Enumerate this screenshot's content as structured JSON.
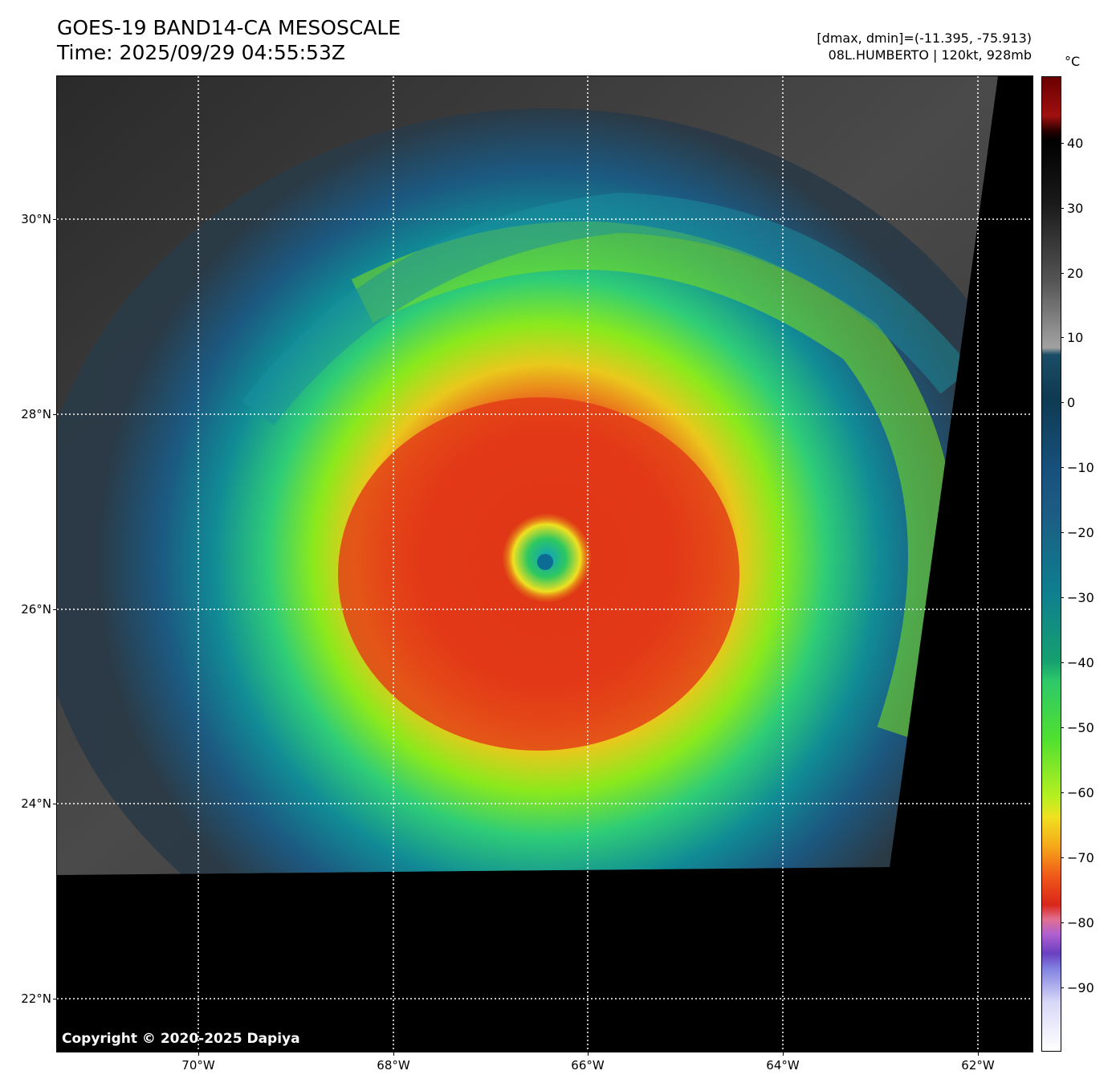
{
  "header": {
    "title": "GOES-19 BAND14-CA MESOSCALE",
    "time": "Time: 2025/09/29 04:55:53Z",
    "dminmax": "[dmax, dmin]=(-11.395, -75.913)",
    "storm": "08L.HUMBERTO | 120kt, 928mb"
  },
  "map": {
    "lat_labels": [
      "30°N",
      "28°N",
      "26°N",
      "24°N",
      "22°N"
    ],
    "lon_labels": [
      "70°W",
      "68°W",
      "66°W",
      "64°W",
      "62°W"
    ],
    "copyright": "Copyright © 2020-2025 Dapiya"
  },
  "colorbar": {
    "unit": "°C",
    "ticks": [
      "40",
      "30",
      "20",
      "10",
      "0",
      "−10",
      "−20",
      "−30",
      "−40",
      "−50",
      "−60",
      "−70",
      "−80",
      "−90"
    ],
    "range": [
      -100,
      50
    ]
  }
}
